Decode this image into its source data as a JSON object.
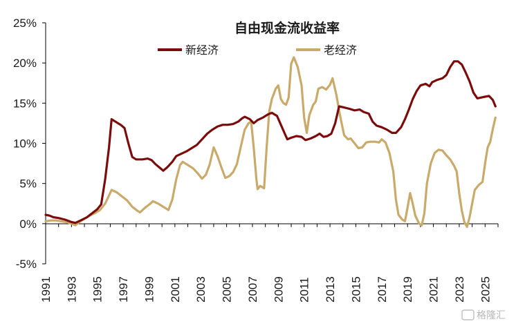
{
  "chart_data": {
    "type": "line",
    "title": "自由现金流收益率",
    "xlabel": "",
    "ylabel": "",
    "ylim": [
      -5,
      25
    ],
    "yticks": [
      "-5%",
      "0%",
      "5%",
      "10%",
      "15%",
      "20%",
      "25%"
    ],
    "xlim": [
      1991,
      2026
    ],
    "xticks": [
      "1991",
      "1993",
      "1995",
      "1997",
      "1999",
      "2001",
      "2003",
      "2005",
      "2007",
      "2009",
      "2011",
      "2013",
      "2015",
      "2017",
      "2019",
      "2021",
      "2023",
      "2025"
    ],
    "grid": false,
    "legend_position": "top-center",
    "series": [
      {
        "name": "新经济",
        "color": "#7a0c0c",
        "points": [
          [
            1991.0,
            1.1
          ],
          [
            1991.3,
            1.0
          ],
          [
            1991.6,
            0.8
          ],
          [
            1992.0,
            0.7
          ],
          [
            1992.5,
            0.5
          ],
          [
            1993.0,
            0.2
          ],
          [
            1993.3,
            0.1
          ],
          [
            1993.7,
            0.4
          ],
          [
            1994.2,
            0.8
          ],
          [
            1994.6,
            1.3
          ],
          [
            1995.0,
            1.8
          ],
          [
            1995.3,
            2.4
          ],
          [
            1995.6,
            5.5
          ],
          [
            1995.9,
            9.5
          ],
          [
            1996.1,
            13.0
          ],
          [
            1996.5,
            12.6
          ],
          [
            1996.8,
            12.3
          ],
          [
            1997.1,
            11.9
          ],
          [
            1997.4,
            10.0
          ],
          [
            1997.7,
            8.3
          ],
          [
            1998.0,
            8.0
          ],
          [
            1998.5,
            8.0
          ],
          [
            1998.9,
            8.1
          ],
          [
            1999.2,
            7.9
          ],
          [
            1999.5,
            7.4
          ],
          [
            1999.8,
            7.0
          ],
          [
            2000.1,
            6.6
          ],
          [
            2000.4,
            7.0
          ],
          [
            2000.8,
            7.7
          ],
          [
            2001.1,
            8.4
          ],
          [
            2001.5,
            8.7
          ],
          [
            2001.9,
            9.0
          ],
          [
            2002.3,
            9.4
          ],
          [
            2002.7,
            9.8
          ],
          [
            2003.1,
            10.5
          ],
          [
            2003.5,
            11.2
          ],
          [
            2003.9,
            11.7
          ],
          [
            2004.3,
            12.1
          ],
          [
            2004.7,
            12.3
          ],
          [
            2005.1,
            12.3
          ],
          [
            2005.5,
            12.4
          ],
          [
            2005.9,
            12.7
          ],
          [
            2006.2,
            13.1
          ],
          [
            2006.4,
            13.3
          ],
          [
            2006.8,
            13.0
          ],
          [
            2007.1,
            12.5
          ],
          [
            2007.4,
            12.9
          ],
          [
            2007.8,
            13.2
          ],
          [
            2008.2,
            13.6
          ],
          [
            2008.5,
            13.8
          ],
          [
            2008.9,
            13.4
          ],
          [
            2009.2,
            12.3
          ],
          [
            2009.5,
            11.2
          ],
          [
            2009.7,
            10.5
          ],
          [
            2010.0,
            10.7
          ],
          [
            2010.4,
            10.9
          ],
          [
            2010.8,
            10.8
          ],
          [
            2011.1,
            10.4
          ],
          [
            2011.5,
            10.6
          ],
          [
            2011.9,
            10.9
          ],
          [
            2012.2,
            11.2
          ],
          [
            2012.5,
            10.8
          ],
          [
            2012.8,
            10.9
          ],
          [
            2013.1,
            11.2
          ],
          [
            2013.4,
            12.5
          ],
          [
            2013.7,
            14.6
          ],
          [
            2014.0,
            14.5
          ],
          [
            2014.5,
            14.3
          ],
          [
            2014.9,
            14.1
          ],
          [
            2015.3,
            14.2
          ],
          [
            2015.6,
            13.9
          ],
          [
            2016.0,
            13.7
          ],
          [
            2016.3,
            12.7
          ],
          [
            2016.6,
            12.2
          ],
          [
            2017.0,
            12.0
          ],
          [
            2017.4,
            11.7
          ],
          [
            2017.8,
            11.3
          ],
          [
            2018.1,
            11.3
          ],
          [
            2018.5,
            12.0
          ],
          [
            2018.8,
            13.0
          ],
          [
            2019.1,
            14.2
          ],
          [
            2019.4,
            15.5
          ],
          [
            2019.7,
            16.5
          ],
          [
            2020.0,
            17.2
          ],
          [
            2020.4,
            17.4
          ],
          [
            2020.7,
            17.1
          ],
          [
            2020.9,
            17.6
          ],
          [
            2021.3,
            17.9
          ],
          [
            2021.7,
            18.1
          ],
          [
            2022.0,
            18.5
          ],
          [
            2022.3,
            19.5
          ],
          [
            2022.6,
            20.2
          ],
          [
            2022.9,
            20.2
          ],
          [
            2023.2,
            19.8
          ],
          [
            2023.5,
            18.8
          ],
          [
            2023.8,
            17.7
          ],
          [
            2024.1,
            16.3
          ],
          [
            2024.4,
            15.6
          ],
          [
            2024.7,
            15.7
          ],
          [
            2025.0,
            15.8
          ],
          [
            2025.3,
            15.9
          ],
          [
            2025.6,
            15.4
          ],
          [
            2025.8,
            14.6
          ]
        ]
      },
      {
        "name": "老经济",
        "color": "#c9aa6a",
        "points": [
          [
            1991.0,
            0.3
          ],
          [
            1991.4,
            0.4
          ],
          [
            1991.8,
            0.4
          ],
          [
            1992.2,
            0.3
          ],
          [
            1992.6,
            0.2
          ],
          [
            1993.0,
            0.0
          ],
          [
            1993.3,
            -0.2
          ],
          [
            1993.6,
            0.2
          ],
          [
            1994.0,
            0.6
          ],
          [
            1994.4,
            1.0
          ],
          [
            1994.8,
            1.3
          ],
          [
            1995.2,
            1.7
          ],
          [
            1995.6,
            2.5
          ],
          [
            1995.9,
            3.5
          ],
          [
            1996.1,
            4.2
          ],
          [
            1996.5,
            3.9
          ],
          [
            1996.9,
            3.4
          ],
          [
            1997.3,
            2.9
          ],
          [
            1997.7,
            2.1
          ],
          [
            1998.1,
            1.6
          ],
          [
            1998.3,
            1.4
          ],
          [
            1998.7,
            2.0
          ],
          [
            1999.1,
            2.5
          ],
          [
            1999.3,
            2.8
          ],
          [
            1999.7,
            2.5
          ],
          [
            2000.0,
            2.2
          ],
          [
            2000.3,
            1.9
          ],
          [
            2000.5,
            1.7
          ],
          [
            2000.8,
            3.0
          ],
          [
            2001.1,
            5.5
          ],
          [
            2001.4,
            7.3
          ],
          [
            2001.6,
            7.7
          ],
          [
            2002.0,
            7.3
          ],
          [
            2002.4,
            6.9
          ],
          [
            2002.8,
            6.2
          ],
          [
            2003.1,
            5.6
          ],
          [
            2003.4,
            6.1
          ],
          [
            2003.7,
            7.4
          ],
          [
            2004.0,
            9.5
          ],
          [
            2004.3,
            8.4
          ],
          [
            2004.6,
            7.0
          ],
          [
            2004.9,
            5.7
          ],
          [
            2005.2,
            5.9
          ],
          [
            2005.5,
            6.4
          ],
          [
            2005.8,
            7.4
          ],
          [
            2006.1,
            9.6
          ],
          [
            2006.4,
            11.7
          ],
          [
            2006.7,
            12.5
          ],
          [
            2006.9,
            12.7
          ],
          [
            2007.1,
            9.5
          ],
          [
            2007.3,
            5.6
          ],
          [
            2007.4,
            4.3
          ],
          [
            2007.6,
            4.7
          ],
          [
            2007.9,
            4.4
          ],
          [
            2008.1,
            9.5
          ],
          [
            2008.3,
            14.0
          ],
          [
            2008.5,
            15.5
          ],
          [
            2008.8,
            16.8
          ],
          [
            2009.0,
            17.2
          ],
          [
            2009.2,
            15.5
          ],
          [
            2009.4,
            15.0
          ],
          [
            2009.6,
            14.8
          ],
          [
            2009.8,
            15.7
          ],
          [
            2010.0,
            19.9
          ],
          [
            2010.2,
            20.7
          ],
          [
            2010.5,
            19.5
          ],
          [
            2010.8,
            17.2
          ],
          [
            2011.0,
            13.2
          ],
          [
            2011.2,
            11.3
          ],
          [
            2011.4,
            13.5
          ],
          [
            2011.7,
            14.8
          ],
          [
            2011.9,
            15.2
          ],
          [
            2012.1,
            16.8
          ],
          [
            2012.4,
            17.0
          ],
          [
            2012.7,
            16.7
          ],
          [
            2013.0,
            17.3
          ],
          [
            2013.2,
            18.1
          ],
          [
            2013.5,
            16.0
          ],
          [
            2013.7,
            14.1
          ],
          [
            2013.9,
            12.5
          ],
          [
            2014.1,
            11.0
          ],
          [
            2014.4,
            10.5
          ],
          [
            2014.6,
            10.6
          ],
          [
            2014.9,
            10.0
          ],
          [
            2015.2,
            9.4
          ],
          [
            2015.5,
            9.5
          ],
          [
            2015.8,
            10.1
          ],
          [
            2016.1,
            10.2
          ],
          [
            2016.5,
            10.2
          ],
          [
            2016.8,
            10.1
          ],
          [
            2017.0,
            10.5
          ],
          [
            2017.3,
            10.1
          ],
          [
            2017.6,
            8.8
          ],
          [
            2017.9,
            6.5
          ],
          [
            2018.1,
            3.0
          ],
          [
            2018.3,
            1.1
          ],
          [
            2018.6,
            0.5
          ],
          [
            2018.8,
            0.3
          ],
          [
            2019.0,
            2.0
          ],
          [
            2019.2,
            3.8
          ],
          [
            2019.4,
            2.5
          ],
          [
            2019.6,
            1.0
          ],
          [
            2019.9,
            0.0
          ],
          [
            2020.1,
            -0.2
          ],
          [
            2020.3,
            1.3
          ],
          [
            2020.5,
            5.0
          ],
          [
            2020.8,
            7.5
          ],
          [
            2021.1,
            8.8
          ],
          [
            2021.4,
            9.2
          ],
          [
            2021.7,
            9.1
          ],
          [
            2022.0,
            8.5
          ],
          [
            2022.3,
            8.0
          ],
          [
            2022.6,
            7.2
          ],
          [
            2022.8,
            6.5
          ],
          [
            2023.0,
            3.8
          ],
          [
            2023.2,
            1.6
          ],
          [
            2023.4,
            0.2
          ],
          [
            2023.6,
            -0.4
          ],
          [
            2023.8,
            0.8
          ],
          [
            2024.0,
            2.5
          ],
          [
            2024.2,
            4.2
          ],
          [
            2024.5,
            4.8
          ],
          [
            2024.8,
            5.2
          ],
          [
            2025.0,
            7.5
          ],
          [
            2025.2,
            9.5
          ],
          [
            2025.4,
            10.2
          ],
          [
            2025.6,
            11.8
          ],
          [
            2025.8,
            13.2
          ]
        ]
      }
    ]
  },
  "watermark": {
    "text": "格隆汇"
  }
}
